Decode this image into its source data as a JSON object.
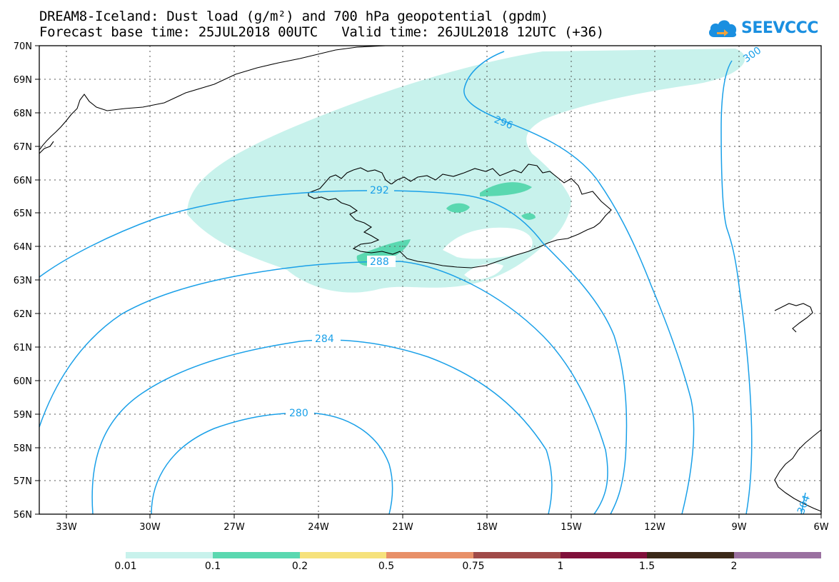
{
  "title_line1": "DREAM8-Iceland: Dust load (g/m²) and 700 hPa geopotential (gpdm)",
  "title_line2": "Forecast base time: 25JUL2018 00UTC   Valid time: 26JUL2018 12UTC (+36)",
  "logo_text": "SEEVCCC",
  "lat_labels": [
    "70N",
    "69N",
    "68N",
    "67N",
    "66N",
    "65N",
    "64N",
    "63N",
    "62N",
    "61N",
    "60N",
    "59N",
    "58N",
    "57N",
    "56N"
  ],
  "lon_labels": [
    "33W",
    "30W",
    "27W",
    "24W",
    "21W",
    "18W",
    "15W",
    "12W",
    "9W",
    "6W"
  ],
  "contour_labels": {
    "c280": "280",
    "c284": "284",
    "c288": "288",
    "c292": "292",
    "c296": "296",
    "c300": "300",
    "c304": "304"
  },
  "colorbar": {
    "labels": [
      "0.01",
      "0.1",
      "0.2",
      "0.5",
      "0.75",
      "1",
      "1.5",
      "2"
    ],
    "colors": [
      "#c8f2ec",
      "#5ad8b0",
      "#f6e27c",
      "#e89068",
      "#a04a48",
      "#80103a",
      "#3a2818",
      "#9a70a0"
    ]
  },
  "dust_colors": {
    "low": "#c8f2ec",
    "mid": "#5ad8b0"
  },
  "contour_color": "#1aa0e8"
}
